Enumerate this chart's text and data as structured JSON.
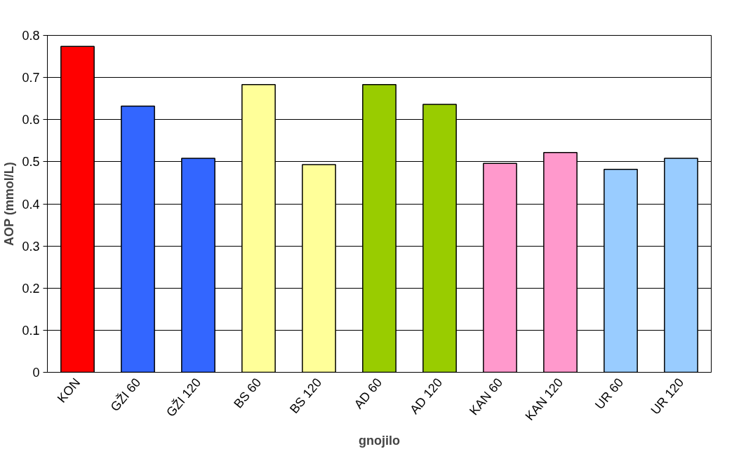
{
  "chart_data": {
    "type": "bar",
    "xlabel": "gnojilo",
    "ylabel": "AOP (mmol/L)",
    "categories": [
      "KON",
      "GŽI 60",
      "GŽI 120",
      "BS 60",
      "BS 120",
      "AD 60",
      "AD 120",
      "KAN 60",
      "KAN 120",
      "UR 60",
      "UR 120"
    ],
    "values": [
      0.774,
      0.632,
      0.508,
      0.683,
      0.493,
      0.683,
      0.636,
      0.496,
      0.522,
      0.482,
      0.508
    ],
    "colors": [
      "#ff0000",
      "#3366ff",
      "#3366ff",
      "#ffff99",
      "#ffff99",
      "#99cc00",
      "#99cc00",
      "#ff99cc",
      "#ff99cc",
      "#99ccff",
      "#99ccff"
    ],
    "ylim": [
      0,
      0.8
    ],
    "yticks": [
      0,
      {
        "value": 0.1,
        "label": "0.1"
      },
      {
        "value": 0.2,
        "label": "0.2"
      },
      {
        "value": 0.3,
        "label": "0.3"
      },
      {
        "value": 0.4,
        "label": "0.4"
      },
      {
        "value": 0.5,
        "label": "0.5"
      },
      {
        "value": 0.6,
        "label": "0.6"
      },
      {
        "value": 0.7,
        "label": "0.7"
      },
      {
        "value": 0.8,
        "label": "0.8"
      }
    ],
    "grid": "y"
  }
}
